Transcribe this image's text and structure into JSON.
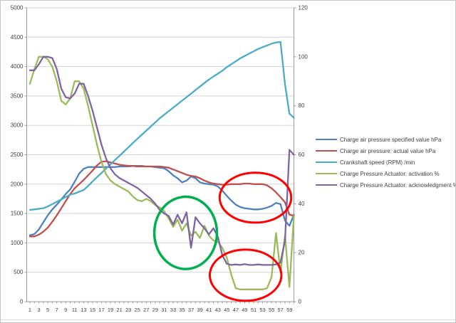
{
  "chart_data": {
    "type": "line",
    "title": "",
    "grid": "horizontal",
    "legend_position": "right",
    "x_count": 60,
    "x_tick_labels": [
      "1",
      "3",
      "5",
      "7",
      "9",
      "11",
      "13",
      "15",
      "17",
      "19",
      "21",
      "23",
      "25",
      "27",
      "29",
      "31",
      "33",
      "35",
      "37",
      "39",
      "41",
      "43",
      "45",
      "47",
      "49",
      "51",
      "53",
      "55",
      "57",
      "59"
    ],
    "left_axis": {
      "min": 0,
      "max": 5000,
      "step": 500,
      "tick_labels": [
        "0",
        "500",
        "1000",
        "1500",
        "2000",
        "2500",
        "3000",
        "3500",
        "4000",
        "4500",
        "5000"
      ]
    },
    "right_axis": {
      "min": 0,
      "max": 120,
      "step": 20,
      "tick_labels": [
        "0",
        "20",
        "40",
        "60",
        "80",
        "100",
        "120"
      ]
    },
    "series": [
      {
        "name": "Charge air pressure specified value  hPa",
        "color": "#4F81BD",
        "axis": "left",
        "values": [
          1130,
          1150,
          1230,
          1350,
          1470,
          1570,
          1650,
          1740,
          1830,
          1910,
          2040,
          2180,
          2260,
          2290,
          2290,
          2290,
          2290,
          2290,
          2290,
          2290,
          2300,
          2300,
          2300,
          2310,
          2310,
          2310,
          2300,
          2300,
          2290,
          2280,
          2270,
          2220,
          2150,
          2100,
          2030,
          2060,
          2130,
          2100,
          2030,
          2010,
          2000,
          1990,
          1960,
          1890,
          1800,
          1720,
          1650,
          1610,
          1590,
          1580,
          1570,
          1570,
          1580,
          1600,
          1630,
          1680,
          1660,
          1380,
          1290,
          1480
        ]
      },
      {
        "name": "Charge air pressure: actual value  hPa",
        "color": "#C0504D",
        "axis": "left",
        "values": [
          1110,
          1110,
          1140,
          1190,
          1260,
          1360,
          1470,
          1590,
          1710,
          1830,
          1930,
          2000,
          2070,
          2150,
          2230,
          2320,
          2380,
          2390,
          2370,
          2350,
          2330,
          2320,
          2310,
          2310,
          2300,
          2300,
          2300,
          2300,
          2300,
          2300,
          2290,
          2280,
          2250,
          2220,
          2190,
          2160,
          2140,
          2130,
          2100,
          2060,
          2030,
          2010,
          2000,
          1990,
          1990,
          2000,
          2000,
          2000,
          2010,
          2010,
          2000,
          2000,
          2000,
          1980,
          1930,
          1860,
          1780,
          1690,
          1480,
          1460
        ]
      },
      {
        "name": "Crankshaft speed (RPM)  /min",
        "color": "#4BACC6",
        "axis": "left",
        "values": [
          1560,
          1570,
          1580,
          1590,
          1620,
          1660,
          1700,
          1740,
          1780,
          1820,
          1840,
          1870,
          1900,
          1970,
          2045,
          2120,
          2190,
          2265,
          2335,
          2410,
          2480,
          2555,
          2625,
          2700,
          2770,
          2840,
          2910,
          2980,
          3050,
          3120,
          3180,
          3240,
          3300,
          3360,
          3420,
          3480,
          3540,
          3600,
          3660,
          3720,
          3780,
          3830,
          3880,
          3930,
          3990,
          4040,
          4090,
          4140,
          4180,
          4220,
          4260,
          4300,
          4330,
          4360,
          4390,
          4410,
          4420,
          3700,
          3200,
          3130
        ]
      },
      {
        "name": "Charge Pressure Actuator: activation  %",
        "color": "#9BBB59",
        "axis": "right",
        "values": [
          89,
          95,
          100,
          100,
          99,
          96,
          90,
          82,
          80.5,
          83,
          90,
          90,
          87,
          80,
          72,
          64,
          57,
          52,
          49.5,
          48,
          47,
          46,
          45,
          43,
          41.5,
          41,
          42,
          41,
          39.5,
          38.5,
          37,
          34,
          30.5,
          33.5,
          29,
          32,
          27,
          28.5,
          26,
          31,
          27,
          25,
          24.5,
          22,
          18,
          11,
          5.5,
          5,
          5,
          5,
          5,
          5,
          5,
          5.5,
          10,
          28,
          12,
          27,
          6,
          35
        ]
      },
      {
        "name": "Charge Pressure Actuator: acknowledgment  %",
        "color": "#8064A2",
        "axis": "right",
        "values": [
          94.5,
          94.5,
          97,
          100,
          100,
          99.5,
          95,
          87,
          83.5,
          83,
          85,
          89,
          89,
          84,
          78,
          71,
          64,
          58.5,
          54.5,
          52,
          50.5,
          49.5,
          48.5,
          47.5,
          46.5,
          45,
          43.5,
          42,
          40,
          37.5,
          36,
          35,
          31.5,
          35.5,
          32,
          36.5,
          22,
          34.5,
          32,
          30,
          27.5,
          30,
          26.5,
          19,
          15.5,
          15,
          15.2,
          15,
          15.3,
          15,
          15,
          15.2,
          15,
          15,
          15,
          15.2,
          16,
          25,
          62,
          60
        ]
      }
    ],
    "annotations": [
      {
        "shape": "ellipse",
        "purpose": "highlight",
        "color": "#FF0000",
        "stroke_width": 3,
        "center_x": 51.4,
        "center_left_value": 1770,
        "radius_x": 8.0,
        "radius_left_value": 425
      },
      {
        "shape": "ellipse",
        "purpose": "highlight",
        "color": "#FF0000",
        "stroke_width": 3,
        "center_x": 49.2,
        "center_left_value": 450,
        "radius_x": 8.0,
        "radius_left_value": 435
      },
      {
        "shape": "ellipse",
        "purpose": "highlight",
        "color": "#00B050",
        "stroke_width": 3.5,
        "center_x": 35.8,
        "center_left_value": 1170,
        "radius_x": 7.0,
        "radius_left_value": 615
      }
    ],
    "colors": {
      "gridline": "#D3D3D3",
      "axis_line": "#9A9A9A",
      "tick_label": "#3F3F3F"
    }
  }
}
